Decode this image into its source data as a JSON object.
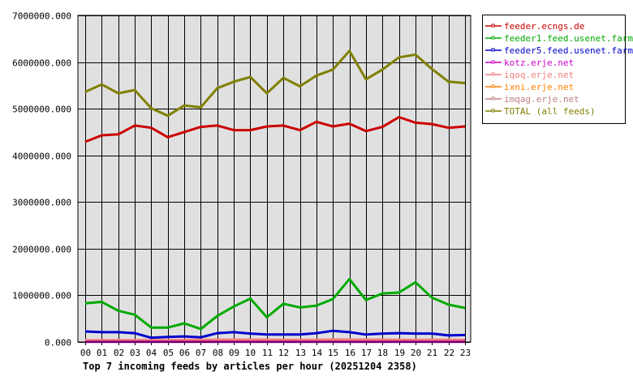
{
  "chart_data": {
    "type": "line",
    "title": "Top 7 incoming feeds by articles per hour (20251204 2358)",
    "xlabel": "",
    "ylabel": "",
    "ylim": [
      0,
      7000000
    ],
    "yticks": [
      "0.000",
      "1000000.000",
      "2000000.000",
      "3000000.000",
      "4000000.000",
      "5000000.000",
      "6000000.000",
      "7000000.000"
    ],
    "grid": true,
    "legend_position": "right",
    "background": "#e0e0e0",
    "categories": [
      "00",
      "01",
      "02",
      "03",
      "04",
      "05",
      "06",
      "07",
      "08",
      "09",
      "10",
      "11",
      "12",
      "13",
      "14",
      "15",
      "16",
      "17",
      "18",
      "19",
      "20",
      "21",
      "22",
      "23"
    ],
    "series": [
      {
        "name": "feeder.ecngs.de",
        "color": "#cc0000",
        "values": [
          4290000,
          4430000,
          4450000,
          4640000,
          4590000,
          4390000,
          4500000,
          4610000,
          4640000,
          4540000,
          4540000,
          4620000,
          4640000,
          4540000,
          4720000,
          4620000,
          4680000,
          4520000,
          4610000,
          4820000,
          4700000,
          4670000,
          4590000,
          4620000
        ]
      },
      {
        "name": "feeder1.feed.usenet.farm",
        "color": "#00aa00",
        "values": [
          830000,
          860000,
          670000,
          585000,
          310000,
          310000,
          400000,
          280000,
          560000,
          760000,
          930000,
          530000,
          820000,
          740000,
          780000,
          920000,
          1350000,
          900000,
          1040000,
          1060000,
          1280000,
          950000,
          800000,
          730000
        ]
      },
      {
        "name": "feeder5.feed.usenet.farm",
        "color": "#0000cc",
        "values": [
          225000,
          210000,
          210000,
          190000,
          90000,
          110000,
          120000,
          100000,
          190000,
          210000,
          180000,
          160000,
          160000,
          160000,
          190000,
          240000,
          210000,
          160000,
          180000,
          190000,
          180000,
          180000,
          140000,
          150000
        ]
      },
      {
        "name": "kotz.erje.net",
        "color": "#cc00cc",
        "values": [
          5000,
          5000,
          5000,
          5000,
          5000,
          5000,
          5000,
          5000,
          5000,
          5000,
          5000,
          5000,
          5000,
          5000,
          5000,
          5000,
          5000,
          5000,
          5000,
          5000,
          5000,
          5000,
          5000,
          5000
        ]
      },
      {
        "name": "iqoq.erje.net",
        "color": "#f08080",
        "values": [
          40000,
          40000,
          40000,
          40000,
          40000,
          40000,
          45000,
          45000,
          50000,
          50000,
          50000,
          50000,
          45000,
          45000,
          45000,
          55000,
          50000,
          50000,
          50000,
          45000,
          45000,
          50000,
          45000,
          45000
        ]
      },
      {
        "name": "ixni.erje.net",
        "color": "#ff8000",
        "values": [
          10000,
          10000,
          10000,
          10000,
          10000,
          10000,
          10000,
          10000,
          10000,
          10000,
          10000,
          10000,
          10000,
          10000,
          10000,
          10000,
          10000,
          10000,
          10000,
          10000,
          10000,
          10000,
          10000,
          10000
        ]
      },
      {
        "name": "imqag.erje.net",
        "color": "#c08080",
        "values": [
          30000,
          30000,
          30000,
          30000,
          30000,
          30000,
          30000,
          30000,
          30000,
          30000,
          30000,
          30000,
          30000,
          30000,
          30000,
          30000,
          30000,
          30000,
          30000,
          30000,
          30000,
          30000,
          30000,
          30000
        ]
      },
      {
        "name": "TOTAL (all feeds)",
        "color": "#808000",
        "values": [
          5360000,
          5520000,
          5330000,
          5400000,
          5010000,
          4850000,
          5070000,
          5030000,
          5440000,
          5580000,
          5680000,
          5330000,
          5660000,
          5480000,
          5710000,
          5840000,
          6240000,
          5630000,
          5840000,
          6100000,
          6160000,
          5850000,
          5580000,
          5550000
        ]
      }
    ]
  }
}
